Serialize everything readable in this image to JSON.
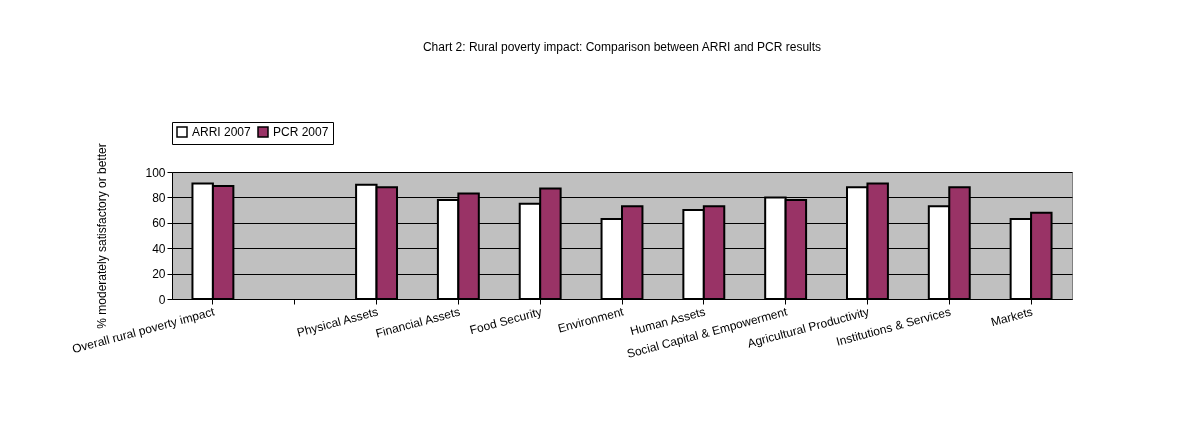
{
  "chart_data": {
    "type": "bar",
    "title": "Chart 2: Rural poverty impact: Comparison between ARRI and PCR results",
    "ylabel": "% moderately satisfactory or better",
    "categories": [
      "Overall rural poverty impact",
      null,
      "Physical Assets",
      "Financial Assets",
      "Food Security",
      "Environment",
      "Human Assets",
      "Social Capital & Empowerment",
      "Agricultural Productivity",
      "Institutions & Services",
      "Markets"
    ],
    "series": [
      {
        "name": "ARRI 2007",
        "color": "#ffffff",
        "values": [
          91,
          null,
          90,
          78,
          75,
          63,
          70,
          80,
          88,
          73,
          63
        ]
      },
      {
        "name": "PCR 2007",
        "color": "#993366",
        "values": [
          89,
          null,
          88,
          83,
          87,
          73,
          73,
          78,
          91,
          88,
          68
        ]
      }
    ],
    "ylim": [
      0,
      100
    ],
    "yticks": [
      0,
      20,
      40,
      60,
      80,
      100
    ],
    "grid": "y",
    "legend": "top"
  }
}
